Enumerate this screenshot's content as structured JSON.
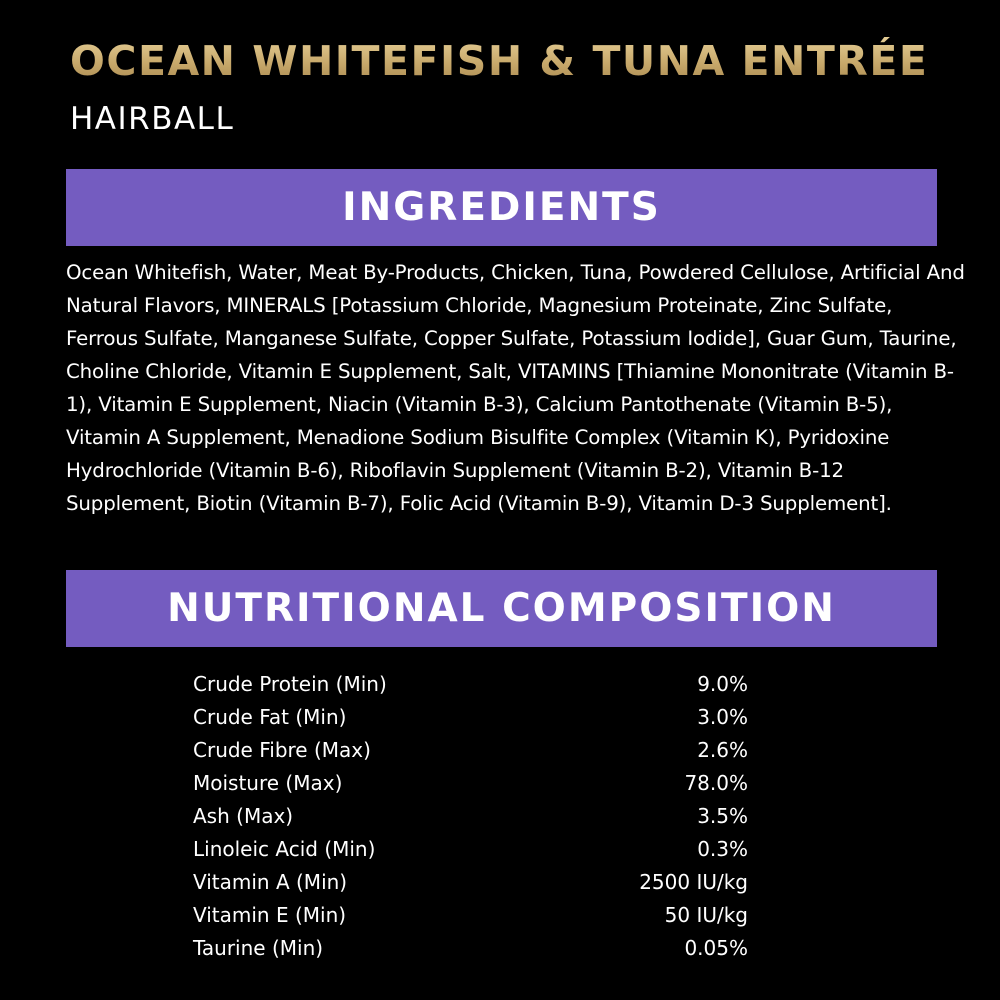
{
  "product": {
    "title": "OCEAN WHITEFISH & TUNA ENTRÉE",
    "subtitle": "HAIRBALL"
  },
  "colors": {
    "background": "#000000",
    "title_gold": "#c9ad72",
    "banner_purple": "#745cc0",
    "text": "#ffffff"
  },
  "ingredients": {
    "heading": "INGREDIENTS",
    "text": "Ocean Whitefish, Water, Meat By-Products, Chicken, Tuna, Powdered Cellulose, Artificial And Natural Flavors, MINERALS [Potassium Chloride, Magnesium Proteinate, Zinc Sulfate, Ferrous Sulfate, Manganese Sulfate, Copper Sulfate, Potassium Iodide], Guar Gum, Taurine, Choline Chloride, Vitamin E Supplement, Salt, VITAMINS [Thiamine Mononitrate (Vitamin B-1), Vitamin E Supplement, Niacin (Vitamin B-3), Calcium Pantothenate (Vitamin B-5), Vitamin A Supplement, Menadione Sodium Bisulfite Complex (Vitamin K), Pyridoxine Hydrochloride (Vitamin B-6), Riboflavin Supplement (Vitamin B-2), Vitamin B-12 Supplement, Biotin (Vitamin B-7), Folic Acid (Vitamin B-9), Vitamin D-3 Supplement]."
  },
  "nutrition": {
    "heading": "NUTRITIONAL COMPOSITION",
    "rows": [
      {
        "name": "Crude Protein (Min)",
        "value": "9.0%"
      },
      {
        "name": "Crude Fat (Min)",
        "value": "3.0%"
      },
      {
        "name": "Crude Fibre (Max)",
        "value": "2.6%"
      },
      {
        "name": "Moisture (Max)",
        "value": "78.0%"
      },
      {
        "name": "Ash (Max)",
        "value": "3.5%"
      },
      {
        "name": "Linoleic Acid (Min)",
        "value": "0.3%"
      },
      {
        "name": "Vitamin A (Min)",
        "value": "2500 IU/kg"
      },
      {
        "name": "Vitamin E (Min)",
        "value": "50 IU/kg"
      },
      {
        "name": "Taurine (Min)",
        "value": "0.05%"
      }
    ]
  }
}
